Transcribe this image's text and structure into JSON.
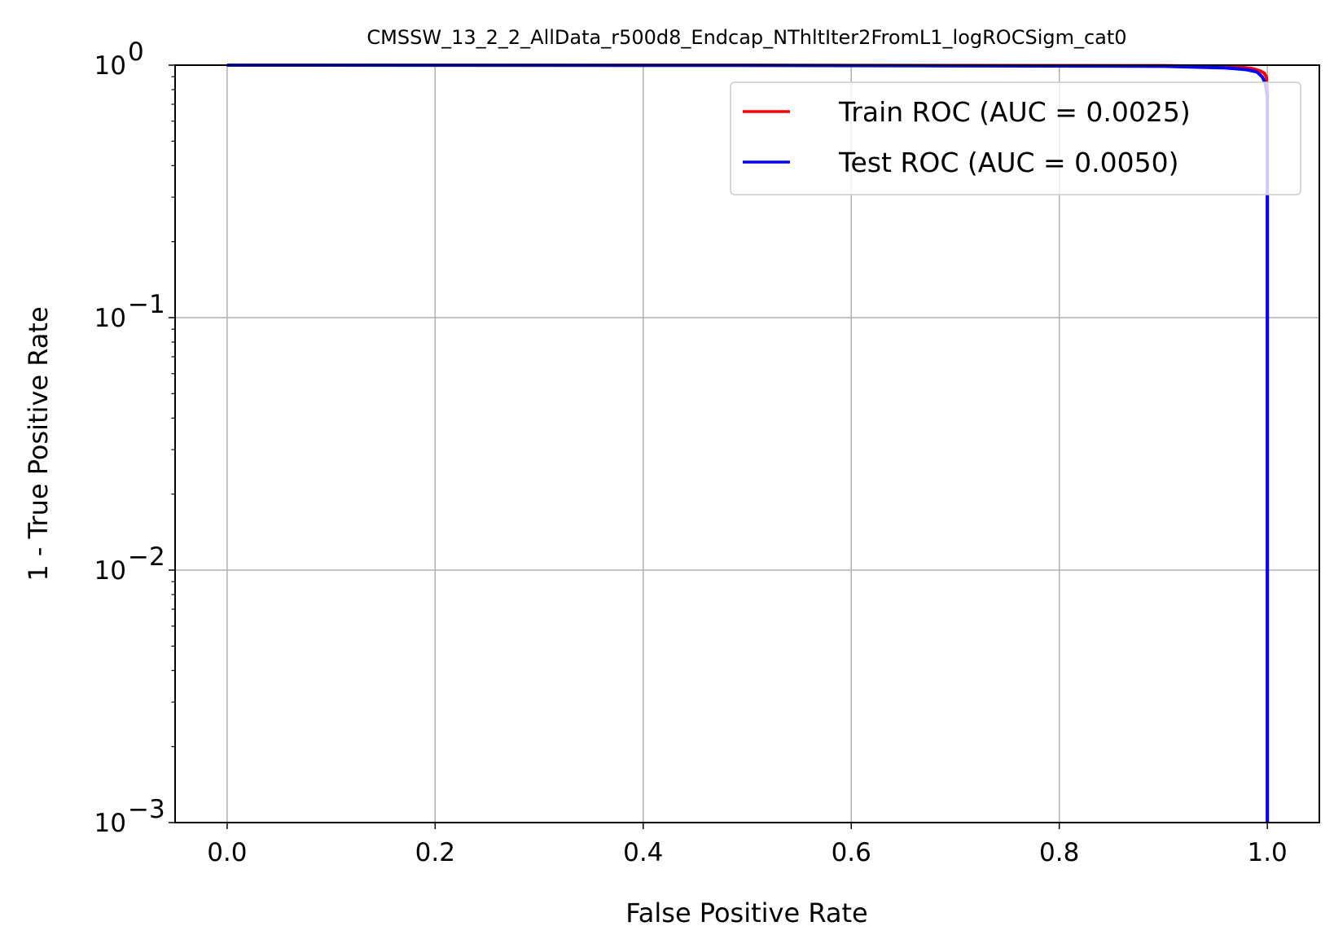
{
  "chart_data": {
    "type": "line",
    "title": "CMSSW_13_2_2_AllData_r500d8_Endcap_NThltIter2FromL1_logROCSigm_cat0",
    "xlabel": "False Positive Rate",
    "ylabel": "1 - True Positive Rate",
    "xlim": [
      -0.05,
      1.05
    ],
    "ylim": [
      0.001,
      1
    ],
    "yscale": "log",
    "grid": true,
    "legend_position": "upper-right",
    "x_ticks": [
      {
        "value": 0.0,
        "label": "0.0"
      },
      {
        "value": 0.2,
        "label": "0.2"
      },
      {
        "value": 0.4,
        "label": "0.4"
      },
      {
        "value": 0.6,
        "label": "0.6"
      },
      {
        "value": 0.8,
        "label": "0.8"
      },
      {
        "value": 1.0,
        "label": "1.0"
      }
    ],
    "y_ticks": [
      {
        "value": 1,
        "base": "10",
        "exp": "0"
      },
      {
        "value": 0.1,
        "base": "10",
        "exp": "−1"
      },
      {
        "value": 0.01,
        "base": "10",
        "exp": "−2"
      },
      {
        "value": 0.001,
        "base": "10",
        "exp": "−3"
      }
    ],
    "series": [
      {
        "name": "Train ROC (AUC = 0.0025)",
        "color": "#ff0000",
        "x": [
          0.0,
          0.5,
          0.9,
          0.97,
          0.985,
          0.993,
          0.997,
          0.999,
          1.0,
          1.0
        ],
        "y": [
          1.0,
          0.999,
          0.995,
          0.985,
          0.97,
          0.95,
          0.93,
          0.9,
          0.8,
          0.001
        ]
      },
      {
        "name": "Test ROC (AUC = 0.0050)",
        "color": "#0000ff",
        "x": [
          0.0,
          0.5,
          0.9,
          0.96,
          0.98,
          0.99,
          0.995,
          0.998,
          1.0,
          1.0
        ],
        "y": [
          1.0,
          0.998,
          0.99,
          0.975,
          0.96,
          0.94,
          0.9,
          0.85,
          0.75,
          0.001
        ]
      }
    ]
  }
}
